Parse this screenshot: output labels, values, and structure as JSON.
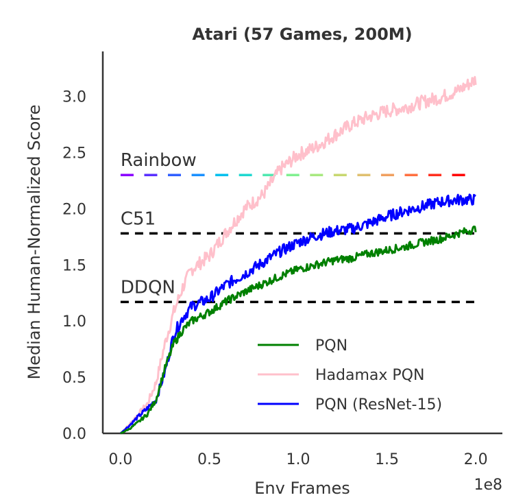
{
  "chart_data": {
    "type": "line",
    "title": "Atari (57 Games, 200M)",
    "xlabel": "Env Frames",
    "ylabel": "Median Human-Normalized Score",
    "x_offset_label": "1e8",
    "xlim": [
      -0.1,
      2.15
    ],
    "ylim": [
      0.0,
      3.4
    ],
    "xticks": [
      0.0,
      0.5,
      1.0,
      1.5,
      2.0
    ],
    "xtick_labels": [
      "0.0",
      "0.5",
      "1.0",
      "1.5",
      "2.0"
    ],
    "yticks": [
      0.0,
      0.5,
      1.0,
      1.5,
      2.0,
      2.5,
      3.0
    ],
    "ytick_labels": [
      "0.0",
      "0.5",
      "1.0",
      "1.5",
      "2.0",
      "2.5",
      "3.0"
    ],
    "grid": false,
    "legend_position": "lower-right",
    "series": [
      {
        "name": "PQN",
        "color": "#008000",
        "x": [
          0.0,
          0.05,
          0.1,
          0.15,
          0.2,
          0.25,
          0.3,
          0.35,
          0.4,
          0.5,
          0.6,
          0.7,
          0.8,
          0.9,
          1.0,
          1.1,
          1.2,
          1.3,
          1.4,
          1.5,
          1.6,
          1.7,
          1.8,
          1.9,
          2.0
        ],
        "values": [
          0.0,
          0.04,
          0.1,
          0.17,
          0.3,
          0.58,
          0.8,
          0.92,
          1.0,
          1.08,
          1.18,
          1.26,
          1.33,
          1.4,
          1.46,
          1.5,
          1.54,
          1.56,
          1.6,
          1.63,
          1.66,
          1.7,
          1.73,
          1.78,
          1.82
        ]
      },
      {
        "name": "Hadamax PQN",
        "color": "#ffc0cb",
        "x": [
          0.0,
          0.05,
          0.1,
          0.15,
          0.2,
          0.25,
          0.3,
          0.35,
          0.4,
          0.5,
          0.6,
          0.7,
          0.8,
          0.9,
          1.0,
          1.1,
          1.2,
          1.3,
          1.4,
          1.5,
          1.6,
          1.7,
          1.8,
          1.9,
          2.0
        ],
        "values": [
          0.0,
          0.08,
          0.17,
          0.26,
          0.45,
          0.8,
          1.08,
          1.3,
          1.46,
          1.58,
          1.8,
          2.0,
          2.12,
          2.35,
          2.48,
          2.55,
          2.65,
          2.75,
          2.82,
          2.87,
          2.9,
          2.95,
          2.99,
          3.05,
          3.15
        ]
      },
      {
        "name": "PQN (ResNet-15)",
        "color": "#0000ff",
        "x": [
          0.0,
          0.05,
          0.1,
          0.15,
          0.2,
          0.25,
          0.3,
          0.35,
          0.4,
          0.5,
          0.6,
          0.7,
          0.8,
          0.9,
          1.0,
          1.1,
          1.2,
          1.3,
          1.4,
          1.5,
          1.6,
          1.7,
          1.8,
          1.9,
          2.0
        ],
        "values": [
          0.0,
          0.07,
          0.15,
          0.22,
          0.3,
          0.55,
          0.88,
          1.03,
          1.13,
          1.2,
          1.33,
          1.42,
          1.52,
          1.62,
          1.7,
          1.76,
          1.8,
          1.82,
          1.87,
          1.93,
          1.98,
          2.02,
          2.06,
          2.08,
          2.08
        ]
      }
    ],
    "reference_lines": [
      {
        "label": "Rainbow",
        "value": 2.3,
        "style": "rainbow-dashed"
      },
      {
        "label": "C51",
        "value": 1.78,
        "style": "black-dashed"
      },
      {
        "label": "DDQN",
        "value": 1.17,
        "style": "black-dashed"
      }
    ]
  }
}
